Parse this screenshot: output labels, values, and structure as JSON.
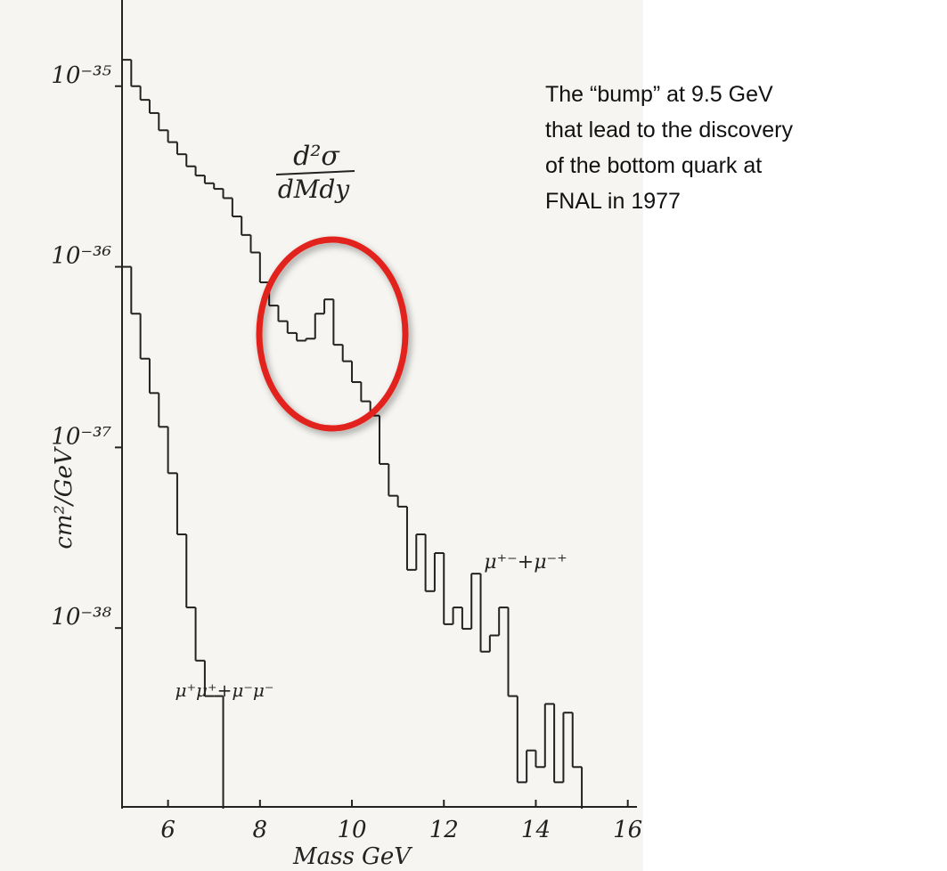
{
  "chart_data": {
    "type": "histogram",
    "formula_numerator": "d²σ",
    "formula_denominator": "dMdy",
    "x_label": "Mass GeV",
    "y_label": "cm²/GeV",
    "annotation_lines": [
      "The “bump” at 9.5 GeV",
      "that lead to the discovery",
      "of the bottom quark at",
      "FNAL in 1977"
    ],
    "xlim": [
      5,
      16.2
    ],
    "xticks": [
      6,
      8,
      10,
      12,
      14,
      16
    ],
    "ylim": [
      1e-39,
      3e-35
    ],
    "yscale": "log",
    "yticks": [
      {
        "value": 1e-35,
        "label": "10⁻³⁵"
      },
      {
        "value": 1e-36,
        "label": "10⁻³⁶"
      },
      {
        "value": 1e-37,
        "label": "10⁻³⁷"
      },
      {
        "value": 1e-38,
        "label": "10⁻³⁸"
      }
    ],
    "series": [
      {
        "name": "μ⁺⁻+μ⁻⁺",
        "color": "#222222",
        "bins": [
          5.0,
          5.2,
          5.4,
          5.6,
          5.8,
          6.0,
          6.2,
          6.4,
          6.6,
          6.8,
          7.0,
          7.2,
          7.4,
          7.6,
          7.8,
          8.0,
          8.2,
          8.4,
          8.6,
          8.8,
          9.0,
          9.2,
          9.4,
          9.6,
          9.8,
          10.0,
          10.2,
          10.4,
          10.6,
          10.8,
          11.0,
          11.2,
          11.4,
          11.6,
          11.8,
          12.0,
          12.2,
          12.4,
          12.6,
          12.8,
          13.0,
          13.2,
          13.4,
          13.6,
          13.8,
          14.0,
          14.2,
          14.4,
          14.6,
          14.8,
          15.0
        ],
        "values": [
          1.4e-35,
          1e-35,
          8.4e-36,
          7.1e-36,
          5.7e-36,
          4.9e-36,
          4.2e-36,
          3.6e-36,
          3.2e-36,
          2.9e-36,
          2.7e-36,
          2.4e-36,
          1.9e-36,
          1.5e-36,
          1.2e-36,
          8.2e-37,
          6.1e-37,
          5e-37,
          4.3e-37,
          3.9e-37,
          4e-37,
          5.5e-37,
          6.6e-37,
          3.7e-37,
          3e-37,
          2.3e-37,
          1.8e-37,
          1.5e-37,
          8.1e-38,
          5.4e-38,
          4.7e-38,
          2.1e-38,
          3.3e-38,
          1.6e-38,
          2.6e-38,
          1.05e-38,
          1.3e-38,
          9.9e-39,
          2e-38,
          7.4e-39,
          9.1e-39,
          1.3e-38,
          4.2e-39,
          1.4e-39,
          2.1e-39,
          1.7e-39,
          3.8e-39,
          1.4e-39,
          3.4e-39,
          1.7e-39
        ]
      },
      {
        "name": "μ⁺μ⁺+μ⁻μ⁻",
        "color": "#222222",
        "bins": [
          5.0,
          5.2,
          5.4,
          5.6,
          5.8,
          6.0,
          6.2,
          6.4,
          6.6,
          6.8,
          7.0,
          7.2
        ],
        "values": [
          1e-36,
          5.5e-37,
          3.1e-37,
          2e-37,
          1.3e-37,
          7.2e-38,
          3.3e-38,
          1.3e-38,
          6.6e-39,
          4.2e-39,
          4.2e-39
        ]
      }
    ]
  }
}
